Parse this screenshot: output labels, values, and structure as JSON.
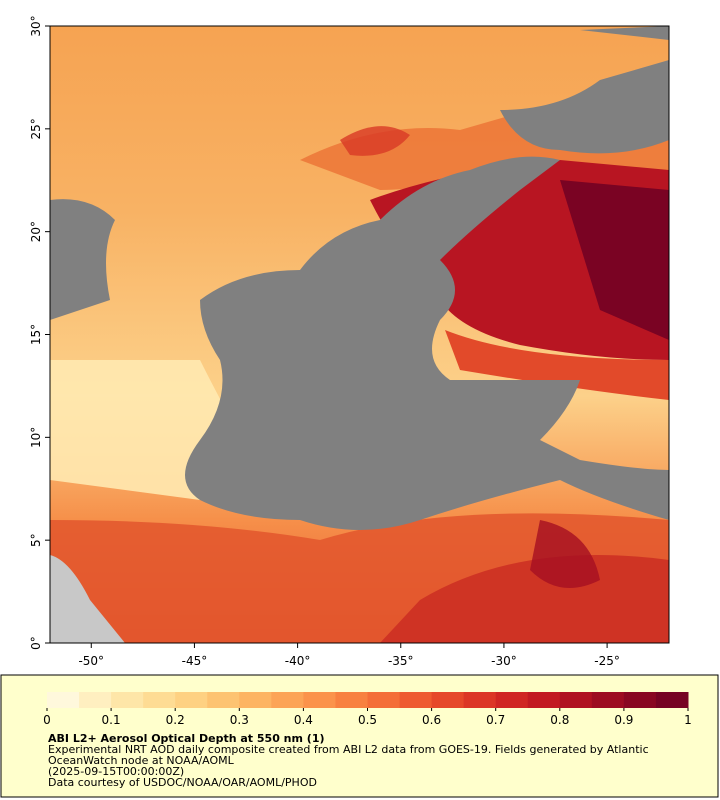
{
  "map": {
    "xlim": [
      -52,
      -22
    ],
    "ylim": [
      0,
      30
    ],
    "xticks": [
      {
        "value": -50,
        "label": "-50°"
      },
      {
        "value": -45,
        "label": "-45°"
      },
      {
        "value": -40,
        "label": "-40°"
      },
      {
        "value": -35,
        "label": "-35°"
      },
      {
        "value": -30,
        "label": "-30°"
      },
      {
        "value": -25,
        "label": "-25°"
      }
    ],
    "yticks": [
      {
        "value": 0,
        "label": "0°"
      },
      {
        "value": 5,
        "label": "5°"
      },
      {
        "value": 10,
        "label": "10°"
      },
      {
        "value": 15,
        "label": "15°"
      },
      {
        "value": 20,
        "label": "20°"
      },
      {
        "value": 25,
        "label": "25°"
      },
      {
        "value": 30,
        "label": "30°"
      }
    ]
  },
  "colorbar": {
    "range": [
      0,
      1
    ],
    "ticks": [
      0,
      0.1,
      0.2,
      0.3,
      0.4,
      0.5,
      0.6,
      0.7,
      0.8,
      0.9,
      1
    ],
    "colors": [
      "#fff8dc",
      "#ffefc0",
      "#fee6a8",
      "#fedc94",
      "#fed182",
      "#fdc371",
      "#fdb462",
      "#fca456",
      "#fb934b",
      "#f88140",
      "#f46e38",
      "#ee5b30",
      "#e6482a",
      "#dc3626",
      "#d02623",
      "#c21a22",
      "#b01222",
      "#9d0c22",
      "#890722",
      "#760323"
    ]
  },
  "caption": {
    "title": "ABI L2+ Aerosol Optical Depth at 550 nm (1)",
    "lines": [
      "Experimental NRT AOD daily composite created from ABI L2 data from GOES-19. Fields generated by Atlantic",
      "OceanWatch node at NOAA/AOML",
      "(2025-09-15T00:00:00Z)",
      "Data courtesy of USDOC/NOAA/OAR/AOML/PHOD"
    ]
  }
}
